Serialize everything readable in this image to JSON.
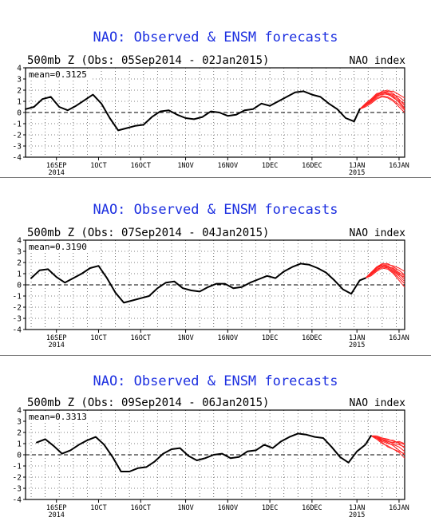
{
  "chart_data": [
    {
      "type": "line",
      "title": "NAO: Observed & ENSM forecasts",
      "subtitle": "500mb Z (Obs: 05Sep2014 - 02Jan2015)",
      "index_label": "NAO index",
      "mean_label": "mean=0.3125",
      "ylim": [
        -4,
        4
      ],
      "yticks": [
        "4",
        "3",
        "2",
        "1",
        "0",
        "-1",
        "-2",
        "-3",
        "-4"
      ],
      "xlim": [
        "2014-09-05",
        "2015-01-18"
      ],
      "xticks": [
        {
          "date": "2014-09-16",
          "label": "16SEP",
          "sub": "2014"
        },
        {
          "date": "2014-10-01",
          "label": "1OCT",
          "sub": ""
        },
        {
          "date": "2014-10-16",
          "label": "16OCT",
          "sub": ""
        },
        {
          "date": "2014-11-01",
          "label": "1NOV",
          "sub": ""
        },
        {
          "date": "2014-11-16",
          "label": "16NOV",
          "sub": ""
        },
        {
          "date": "2014-12-01",
          "label": "1DEC",
          "sub": ""
        },
        {
          "date": "2014-12-16",
          "label": "16DEC",
          "sub": ""
        },
        {
          "date": "2015-01-01",
          "label": "1JAN",
          "sub": "2015"
        },
        {
          "date": "2015-01-16",
          "label": "16JAN",
          "sub": ""
        }
      ],
      "observed_color": "#000000",
      "forecast_color": "#ff2020",
      "observed": {
        "x": [
          "2014-09-05",
          "2014-09-08",
          "2014-09-11",
          "2014-09-14",
          "2014-09-17",
          "2014-09-20",
          "2014-09-23",
          "2014-09-26",
          "2014-09-29",
          "2014-10-02",
          "2014-10-05",
          "2014-10-08",
          "2014-10-11",
          "2014-10-14",
          "2014-10-17",
          "2014-10-20",
          "2014-10-23",
          "2014-10-26",
          "2014-10-29",
          "2014-11-01",
          "2014-11-04",
          "2014-11-07",
          "2014-11-10",
          "2014-11-13",
          "2014-11-16",
          "2014-11-19",
          "2014-11-22",
          "2014-11-25",
          "2014-11-28",
          "2014-12-01",
          "2014-12-04",
          "2014-12-07",
          "2014-12-10",
          "2014-12-13",
          "2014-12-16",
          "2014-12-19",
          "2014-12-22",
          "2014-12-25",
          "2014-12-28",
          "2014-12-31",
          "2015-01-02"
        ],
        "y": [
          0.3,
          0.5,
          1.2,
          1.4,
          0.5,
          0.2,
          0.6,
          1.1,
          1.6,
          0.8,
          -0.5,
          -1.6,
          -1.4,
          -1.2,
          -1.1,
          -0.4,
          0.1,
          0.2,
          -0.2,
          -0.5,
          -0.6,
          -0.4,
          0.1,
          0.0,
          -0.3,
          -0.2,
          0.2,
          0.3,
          0.8,
          0.6,
          1.0,
          1.4,
          1.8,
          1.9,
          1.6,
          1.4,
          0.8,
          0.3,
          -0.5,
          -0.8,
          0.3
        ]
      },
      "forecast_x": [
        "2015-01-02",
        "2015-01-04",
        "2015-01-06",
        "2015-01-08",
        "2015-01-10",
        "2015-01-12",
        "2015-01-14",
        "2015-01-16",
        "2015-01-18"
      ],
      "forecast_members": [
        [
          0.3,
          0.7,
          1.1,
          1.6,
          1.9,
          2.0,
          1.7,
          1.2,
          0.6
        ],
        [
          0.3,
          0.6,
          1.0,
          1.4,
          1.7,
          1.6,
          1.4,
          0.9,
          0.3
        ],
        [
          0.3,
          0.8,
          1.2,
          1.7,
          1.8,
          1.8,
          1.6,
          1.4,
          1.0
        ],
        [
          0.3,
          0.6,
          0.9,
          1.3,
          1.5,
          1.4,
          1.1,
          0.7,
          0.2
        ],
        [
          0.3,
          0.7,
          1.1,
          1.5,
          1.8,
          1.9,
          1.9,
          1.6,
          1.3
        ],
        [
          0.3,
          0.5,
          0.8,
          1.2,
          1.4,
          1.3,
          1.0,
          0.5,
          0.0
        ],
        [
          0.3,
          0.7,
          1.0,
          1.5,
          1.6,
          1.7,
          1.5,
          1.1,
          0.8
        ],
        [
          0.3,
          0.6,
          1.1,
          1.6,
          1.8,
          1.7,
          1.3,
          1.0,
          0.4
        ]
      ]
    },
    {
      "type": "line",
      "title": "NAO: Observed & ENSM forecasts",
      "subtitle": "500mb Z (Obs: 07Sep2014 - 04Jan2015)",
      "index_label": "NAO index",
      "mean_label": "mean=0.3190",
      "ylim": [
        -4,
        4
      ],
      "yticks": [
        "4",
        "3",
        "2",
        "1",
        "0",
        "-1",
        "-2",
        "-3",
        "-4"
      ],
      "xlim": [
        "2014-09-05",
        "2015-01-18"
      ],
      "xticks": [
        {
          "date": "2014-09-16",
          "label": "16SEP",
          "sub": "2014"
        },
        {
          "date": "2014-10-01",
          "label": "1OCT",
          "sub": ""
        },
        {
          "date": "2014-10-16",
          "label": "16OCT",
          "sub": ""
        },
        {
          "date": "2014-11-01",
          "label": "1NOV",
          "sub": ""
        },
        {
          "date": "2014-11-16",
          "label": "16NOV",
          "sub": ""
        },
        {
          "date": "2014-12-01",
          "label": "1DEC",
          "sub": ""
        },
        {
          "date": "2014-12-16",
          "label": "16DEC",
          "sub": ""
        },
        {
          "date": "2015-01-01",
          "label": "1JAN",
          "sub": "2015"
        },
        {
          "date": "2015-01-16",
          "label": "16JAN",
          "sub": ""
        }
      ],
      "observed_color": "#000000",
      "forecast_color": "#ff2020",
      "observed": {
        "x": [
          "2014-09-07",
          "2014-09-10",
          "2014-09-13",
          "2014-09-16",
          "2014-09-19",
          "2014-09-22",
          "2014-09-25",
          "2014-09-28",
          "2014-10-01",
          "2014-10-04",
          "2014-10-07",
          "2014-10-10",
          "2014-10-13",
          "2014-10-16",
          "2014-10-19",
          "2014-10-22",
          "2014-10-25",
          "2014-10-28",
          "2014-10-31",
          "2014-11-03",
          "2014-11-06",
          "2014-11-09",
          "2014-11-12",
          "2014-11-15",
          "2014-11-18",
          "2014-11-21",
          "2014-11-24",
          "2014-11-27",
          "2014-11-30",
          "2014-12-03",
          "2014-12-06",
          "2014-12-09",
          "2014-12-12",
          "2014-12-15",
          "2014-12-18",
          "2014-12-21",
          "2014-12-24",
          "2014-12-27",
          "2014-12-30",
          "2015-01-02",
          "2015-01-04"
        ],
        "y": [
          0.6,
          1.3,
          1.4,
          0.7,
          0.2,
          0.6,
          1.0,
          1.5,
          1.7,
          0.6,
          -0.7,
          -1.6,
          -1.4,
          -1.2,
          -1.0,
          -0.3,
          0.2,
          0.3,
          -0.3,
          -0.5,
          -0.6,
          -0.2,
          0.1,
          0.1,
          -0.3,
          -0.2,
          0.2,
          0.5,
          0.8,
          0.6,
          1.2,
          1.6,
          1.9,
          1.8,
          1.5,
          1.1,
          0.4,
          -0.4,
          -0.8,
          0.4,
          0.6
        ]
      },
      "forecast_x": [
        "2015-01-04",
        "2015-01-06",
        "2015-01-08",
        "2015-01-10",
        "2015-01-12",
        "2015-01-14",
        "2015-01-16",
        "2015-01-18"
      ],
      "forecast_members": [
        [
          0.6,
          1.0,
          1.5,
          1.8,
          1.7,
          1.4,
          1.0,
          0.5
        ],
        [
          0.6,
          1.1,
          1.6,
          1.9,
          1.9,
          1.6,
          1.3,
          0.9
        ],
        [
          0.6,
          0.9,
          1.4,
          1.6,
          1.5,
          1.1,
          0.6,
          0.1
        ],
        [
          0.6,
          1.0,
          1.5,
          1.8,
          1.8,
          1.7,
          1.5,
          1.2
        ],
        [
          0.6,
          0.8,
          1.2,
          1.5,
          1.4,
          1.0,
          0.4,
          -0.2
        ],
        [
          0.6,
          1.0,
          1.6,
          1.8,
          1.6,
          1.3,
          0.9,
          0.7
        ],
        [
          0.6,
          1.1,
          1.5,
          1.7,
          1.5,
          1.2,
          0.8,
          0.3
        ],
        [
          0.6,
          0.9,
          1.3,
          1.6,
          1.6,
          1.5,
          1.1,
          0.8
        ]
      ]
    },
    {
      "type": "line",
      "title": "NAO: Observed & ENSM forecasts",
      "subtitle": "500mb Z (Obs: 09Sep2014 - 06Jan2015)",
      "index_label": "NAO index",
      "mean_label": "mean=0.3313",
      "ylim": [
        -4,
        4
      ],
      "yticks": [
        "4",
        "3",
        "2",
        "1",
        "0",
        "-1",
        "-2",
        "-3",
        "-4"
      ],
      "xlim": [
        "2014-09-05",
        "2015-01-18"
      ],
      "xticks": [
        {
          "date": "2014-09-16",
          "label": "16SEP",
          "sub": "2014"
        },
        {
          "date": "2014-10-01",
          "label": "1OCT",
          "sub": ""
        },
        {
          "date": "2014-10-16",
          "label": "16OCT",
          "sub": ""
        },
        {
          "date": "2014-11-01",
          "label": "1NOV",
          "sub": ""
        },
        {
          "date": "2014-11-16",
          "label": "16NOV",
          "sub": ""
        },
        {
          "date": "2014-12-01",
          "label": "1DEC",
          "sub": ""
        },
        {
          "date": "2014-12-16",
          "label": "16DEC",
          "sub": ""
        },
        {
          "date": "2015-01-01",
          "label": "1JAN",
          "sub": "2015"
        },
        {
          "date": "2015-01-16",
          "label": "16JAN",
          "sub": ""
        }
      ],
      "observed_color": "#000000",
      "forecast_color": "#ff2020",
      "observed": {
        "x": [
          "2014-09-09",
          "2014-09-12",
          "2014-09-15",
          "2014-09-18",
          "2014-09-21",
          "2014-09-24",
          "2014-09-27",
          "2014-09-30",
          "2014-10-03",
          "2014-10-06",
          "2014-10-09",
          "2014-10-12",
          "2014-10-15",
          "2014-10-18",
          "2014-10-21",
          "2014-10-24",
          "2014-10-27",
          "2014-10-30",
          "2014-11-02",
          "2014-11-05",
          "2014-11-08",
          "2014-11-11",
          "2014-11-14",
          "2014-11-17",
          "2014-11-20",
          "2014-11-23",
          "2014-11-26",
          "2014-11-29",
          "2014-12-02",
          "2014-12-05",
          "2014-12-08",
          "2014-12-11",
          "2014-12-14",
          "2014-12-17",
          "2014-12-20",
          "2014-12-23",
          "2014-12-26",
          "2014-12-29",
          "2015-01-01",
          "2015-01-04",
          "2015-01-06"
        ],
        "y": [
          1.1,
          1.4,
          0.8,
          0.1,
          0.4,
          0.9,
          1.3,
          1.6,
          0.9,
          -0.2,
          -1.5,
          -1.5,
          -1.2,
          -1.1,
          -0.6,
          0.1,
          0.5,
          0.6,
          -0.1,
          -0.5,
          -0.3,
          0.0,
          0.1,
          -0.3,
          -0.2,
          0.3,
          0.4,
          0.9,
          0.6,
          1.2,
          1.6,
          1.9,
          1.8,
          1.6,
          1.5,
          0.7,
          -0.2,
          -0.7,
          0.3,
          0.9,
          1.7
        ]
      },
      "forecast_x": [
        "2015-01-06",
        "2015-01-08",
        "2015-01-10",
        "2015-01-12",
        "2015-01-14",
        "2015-01-16",
        "2015-01-18"
      ],
      "forecast_members": [
        [
          1.7,
          1.5,
          1.2,
          1.0,
          0.9,
          0.7,
          0.3
        ],
        [
          1.7,
          1.6,
          1.5,
          1.4,
          1.2,
          1.1,
          0.9
        ],
        [
          1.7,
          1.4,
          1.0,
          0.8,
          0.5,
          0.2,
          -0.3
        ],
        [
          1.7,
          1.6,
          1.3,
          1.2,
          1.1,
          1.2,
          1.0
        ],
        [
          1.7,
          1.5,
          1.1,
          0.7,
          0.5,
          0.3,
          0.1
        ],
        [
          1.7,
          1.7,
          1.5,
          1.3,
          1.3,
          1.0,
          0.6
        ],
        [
          1.7,
          1.5,
          1.3,
          1.1,
          0.8,
          0.4,
          0.0
        ],
        [
          1.7,
          1.6,
          1.4,
          1.2,
          1.0,
          0.9,
          0.7
        ]
      ]
    }
  ]
}
